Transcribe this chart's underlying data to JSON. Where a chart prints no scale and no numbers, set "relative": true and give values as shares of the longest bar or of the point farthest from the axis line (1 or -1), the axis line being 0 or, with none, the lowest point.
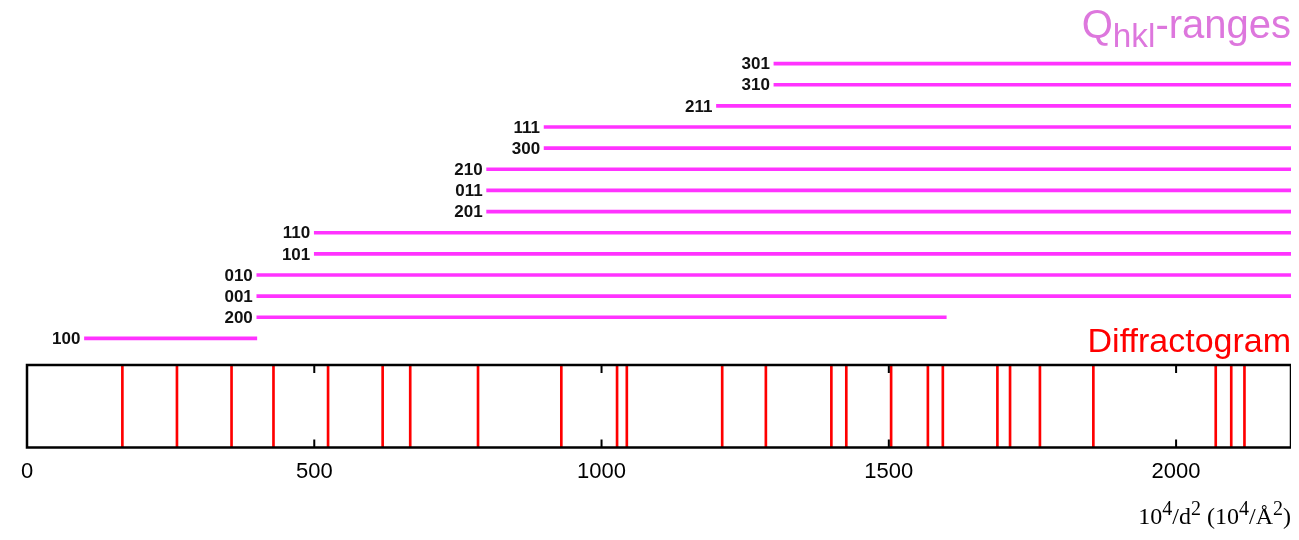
{
  "chart_data": [
    {
      "type": "bar",
      "orientation": "horizontal",
      "title": "Q$_{hkl}$-ranges",
      "tick_labels": "y",
      "categories": [
        "301",
        "310",
        "211",
        "111",
        "300",
        "210",
        "011",
        "201",
        "110",
        "101",
        "010",
        "001",
        "200",
        "100"
      ],
      "base": [
        1300,
        1300,
        1200,
        900,
        900,
        800,
        800,
        800,
        500,
        500,
        400,
        400,
        400,
        100
      ],
      "values": [
        900,
        900,
        1000,
        1300,
        1300,
        1400,
        1400,
        1400,
        1700,
        1700,
        1800,
        1800,
        1200,
        300
      ],
      "color": "#ff33ff",
      "xlim": [
        0,
        2200
      ]
    },
    {
      "type": "bar",
      "title": "Diffractogram",
      "xlabel": "10$^{4}$/d$^{2}$ (10$^{4}$/Å$^{2}$)",
      "relative": true,
      "x": [
        166,
        261,
        356,
        429,
        524,
        619,
        667,
        785,
        930,
        1027,
        1044,
        1210,
        1286,
        1400,
        1426,
        1504,
        1568,
        1594,
        1689,
        1711,
        1763,
        1856,
        2069,
        2096,
        2119
      ],
      "values": [
        1,
        1,
        1,
        1,
        1,
        1,
        1,
        1,
        1,
        1,
        1,
        1,
        1,
        1,
        1,
        1,
        1,
        1,
        1,
        1,
        1,
        1,
        1,
        1,
        1
      ],
      "color": "#ff0000",
      "xlim": [
        0,
        2200
      ],
      "xticks": [
        0,
        500,
        1000,
        1500,
        2000
      ]
    }
  ]
}
